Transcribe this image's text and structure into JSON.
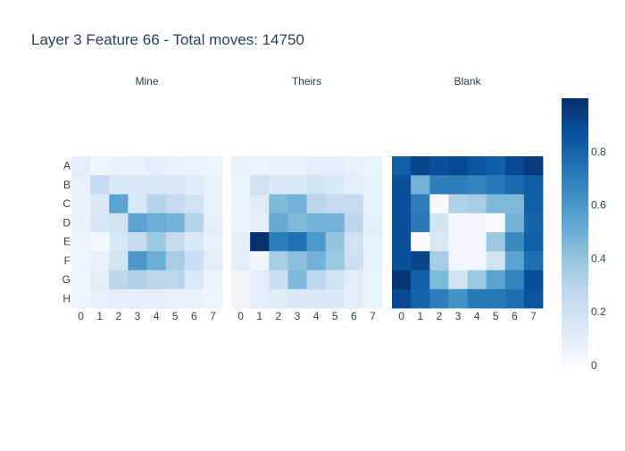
{
  "chart_data": {
    "type": "heatmap",
    "title": "Layer 3 Feature 66 - Total moves: 14750",
    "row_labels": [
      "A",
      "B",
      "C",
      "D",
      "E",
      "F",
      "G",
      "H"
    ],
    "col_labels": [
      "0",
      "1",
      "2",
      "3",
      "4",
      "5",
      "6",
      "7"
    ],
    "colorscale": "Blues",
    "color_range": [
      0,
      1
    ],
    "colorbar_ticks": [
      0,
      0.2,
      0.4,
      0.6,
      0.8
    ],
    "colorbar_tick_labels": [
      "0",
      "0.2",
      "0.4",
      "0.6",
      "0.8"
    ],
    "panels": [
      {
        "title": "Mine",
        "values": [
          [
            0.1,
            0.05,
            0.07,
            0.08,
            0.09,
            0.07,
            0.06,
            0.05
          ],
          [
            0.08,
            0.25,
            0.15,
            0.14,
            0.15,
            0.14,
            0.12,
            0.08
          ],
          [
            0.08,
            0.14,
            0.55,
            0.15,
            0.3,
            0.25,
            0.2,
            0.08
          ],
          [
            0.08,
            0.16,
            0.18,
            0.55,
            0.5,
            0.48,
            0.3,
            0.1
          ],
          [
            0.05,
            0.02,
            0.15,
            0.25,
            0.38,
            0.25,
            0.15,
            0.08
          ],
          [
            0.05,
            0.08,
            0.18,
            0.6,
            0.5,
            0.35,
            0.22,
            0.1
          ],
          [
            0.04,
            0.1,
            0.28,
            0.32,
            0.28,
            0.28,
            0.15,
            0.06
          ],
          [
            0.04,
            0.08,
            0.09,
            0.1,
            0.1,
            0.08,
            0.07,
            0.05
          ]
        ]
      },
      {
        "title": "Theirs",
        "values": [
          [
            0.08,
            0.06,
            0.08,
            0.08,
            0.1,
            0.1,
            0.07,
            0.06
          ],
          [
            0.06,
            0.2,
            0.14,
            0.15,
            0.18,
            0.15,
            0.1,
            0.07
          ],
          [
            0.06,
            0.12,
            0.45,
            0.48,
            0.28,
            0.25,
            0.25,
            0.08
          ],
          [
            0.06,
            0.1,
            0.52,
            0.45,
            0.48,
            0.48,
            0.28,
            0.1
          ],
          [
            0.1,
            0.99,
            0.7,
            0.75,
            0.6,
            0.4,
            0.2,
            0.08
          ],
          [
            0.1,
            0.04,
            0.35,
            0.42,
            0.48,
            0.38,
            0.22,
            0.08
          ],
          [
            0.04,
            0.1,
            0.22,
            0.45,
            0.28,
            0.2,
            0.1,
            0.06
          ],
          [
            0.04,
            0.1,
            0.12,
            0.15,
            0.14,
            0.14,
            0.1,
            0.06
          ]
        ]
      },
      {
        "title": "Blank",
        "values": [
          [
            0.82,
            0.92,
            0.88,
            0.9,
            0.86,
            0.82,
            0.9,
            0.96
          ],
          [
            0.88,
            0.48,
            0.7,
            0.7,
            0.68,
            0.72,
            0.78,
            0.82
          ],
          [
            0.88,
            0.7,
            0.0,
            0.32,
            0.35,
            0.45,
            0.45,
            0.82
          ],
          [
            0.88,
            0.72,
            0.18,
            0.02,
            0.02,
            0.0,
            0.48,
            0.8
          ],
          [
            0.88,
            0.0,
            0.15,
            0.02,
            0.02,
            0.38,
            0.65,
            0.82
          ],
          [
            0.88,
            0.92,
            0.35,
            0.02,
            0.02,
            0.2,
            0.55,
            0.76
          ],
          [
            0.98,
            0.82,
            0.45,
            0.18,
            0.38,
            0.55,
            0.68,
            0.88
          ],
          [
            0.9,
            0.8,
            0.7,
            0.62,
            0.72,
            0.72,
            0.76,
            0.86
          ]
        ]
      }
    ]
  }
}
